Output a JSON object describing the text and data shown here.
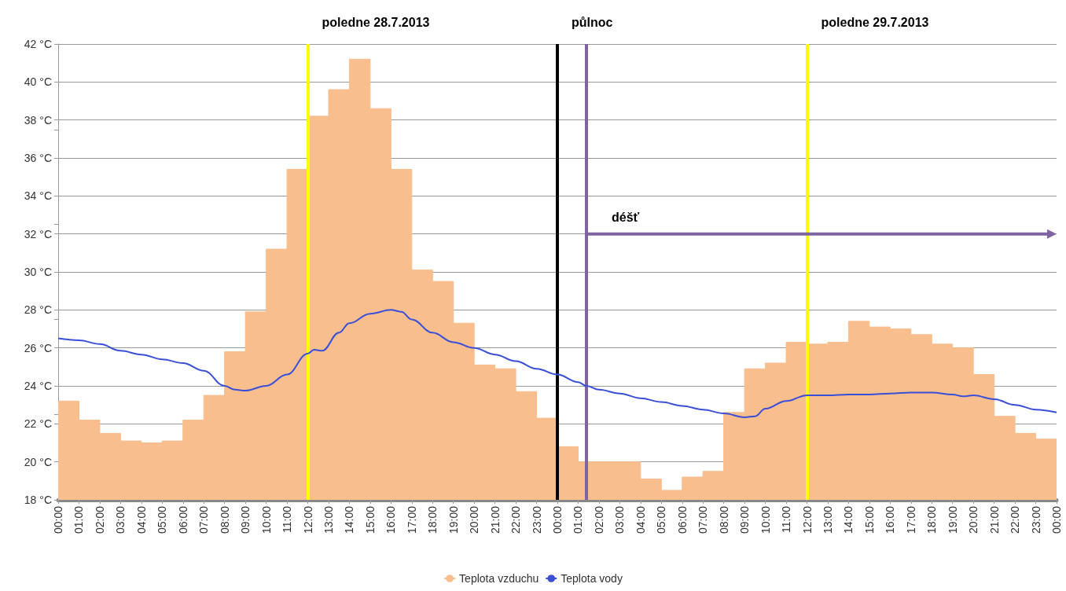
{
  "chart_data": {
    "type": "line",
    "series": [
      {
        "name": "Teplota vzduchu",
        "type": "area",
        "color": "#f9be8e",
        "x": [
          "2013-07-28T00:00",
          "2013-07-28T01:00",
          "2013-07-28T01:00",
          "2013-07-28T02:00",
          "2013-07-28T02:00",
          "2013-07-28T03:00",
          "2013-07-28T03:00",
          "2013-07-28T04:00",
          "2013-07-28T04:00",
          "2013-07-28T05:00",
          "2013-07-28T05:00",
          "2013-07-28T06:00",
          "2013-07-28T06:00",
          "2013-07-28T07:00",
          "2013-07-28T07:00",
          "2013-07-28T08:00",
          "2013-07-28T08:00",
          "2013-07-28T09:00",
          "2013-07-28T09:00",
          "2013-07-28T10:00",
          "2013-07-28T10:00",
          "2013-07-28T11:00",
          "2013-07-28T11:00",
          "2013-07-28T12:00",
          "2013-07-28T12:00",
          "2013-07-28T13:00",
          "2013-07-28T13:00",
          "2013-07-28T14:00",
          "2013-07-28T14:00",
          "2013-07-28T15:00",
          "2013-07-28T15:00",
          "2013-07-28T16:00",
          "2013-07-28T16:00",
          "2013-07-28T17:00",
          "2013-07-28T17:00",
          "2013-07-28T18:00",
          "2013-07-28T18:00",
          "2013-07-28T19:00",
          "2013-07-28T19:00",
          "2013-07-28T20:00",
          "2013-07-28T20:00",
          "2013-07-28T21:00",
          "2013-07-28T21:00",
          "2013-07-28T22:00",
          "2013-07-28T22:00",
          "2013-07-28T23:00",
          "2013-07-28T23:00",
          "2013-07-29T00:00",
          "2013-07-29T00:00",
          "2013-07-29T01:00",
          "2013-07-29T01:00",
          "2013-07-29T04:00",
          "2013-07-29T04:00",
          "2013-07-29T05:00",
          "2013-07-29T05:00",
          "2013-07-29T06:00",
          "2013-07-29T06:00",
          "2013-07-29T07:00",
          "2013-07-29T07:00",
          "2013-07-29T08:00",
          "2013-07-29T08:00",
          "2013-07-29T09:00",
          "2013-07-29T09:00",
          "2013-07-29T10:00",
          "2013-07-29T10:00",
          "2013-07-29T11:00",
          "2013-07-29T11:00",
          "2013-07-29T12:00",
          "2013-07-29T12:00",
          "2013-07-29T13:00",
          "2013-07-29T13:00",
          "2013-07-29T14:00",
          "2013-07-29T14:00",
          "2013-07-29T15:00",
          "2013-07-29T15:00",
          "2013-07-29T16:00",
          "2013-07-29T16:00",
          "2013-07-29T17:00",
          "2013-07-29T17:00",
          "2013-07-29T18:00",
          "2013-07-29T18:00",
          "2013-07-29T19:00",
          "2013-07-29T19:00",
          "2013-07-29T20:00",
          "2013-07-29T20:00",
          "2013-07-29T21:00",
          "2013-07-29T21:00",
          "2013-07-29T22:00",
          "2013-07-29T22:00",
          "2013-07-29T23:00",
          "2013-07-29T23:00",
          "2013-07-30T00:00"
        ],
        "values": [
          23.2,
          23.2,
          22.2,
          22.2,
          21.5,
          21.5,
          21.1,
          21.1,
          21.0,
          21.0,
          21.1,
          21.1,
          22.2,
          22.2,
          23.5,
          23.5,
          25.8,
          25.8,
          27.9,
          27.9,
          31.2,
          31.2,
          35.4,
          35.4,
          38.2,
          38.2,
          39.6,
          39.6,
          41.2,
          41.2,
          38.6,
          38.6,
          35.4,
          35.4,
          30.1,
          30.1,
          29.5,
          29.5,
          27.3,
          27.3,
          25.1,
          25.1,
          24.9,
          24.9,
          23.7,
          23.7,
          22.3,
          22.3,
          20.8,
          20.8,
          20.0,
          20.0,
          19.1,
          19.1,
          18.5,
          18.5,
          19.2,
          19.2,
          19.5,
          19.5,
          22.6,
          22.6,
          24.9,
          24.9,
          25.2,
          25.2,
          26.3,
          26.3,
          26.2,
          26.2,
          26.3,
          26.3,
          27.4,
          27.4,
          27.1,
          27.1,
          27.0,
          27.0,
          26.7,
          26.7,
          26.2,
          26.2,
          26.0,
          26.0,
          24.6,
          24.6,
          22.4,
          22.4,
          21.5,
          21.5,
          21.2,
          21.2
        ]
      },
      {
        "name": "Teplota vody",
        "color": "#3a4fd8",
        "x": [
          "2013-07-28T00:00",
          "2013-07-28T01:00",
          "2013-07-28T02:00",
          "2013-07-28T03:00",
          "2013-07-28T04:00",
          "2013-07-28T05:00",
          "2013-07-28T06:00",
          "2013-07-28T07:00",
          "2013-07-28T08:00",
          "2013-07-28T08:30",
          "2013-07-28T09:00",
          "2013-07-28T10:00",
          "2013-07-28T11:00",
          "2013-07-28T12:00",
          "2013-07-28T12:18",
          "2013-07-28T12:42",
          "2013-07-28T13:30",
          "2013-07-28T14:00",
          "2013-07-28T15:00",
          "2013-07-28T16:00",
          "2013-07-28T16:30",
          "2013-07-28T17:00",
          "2013-07-28T18:00",
          "2013-07-28T19:00",
          "2013-07-28T20:00",
          "2013-07-28T21:00",
          "2013-07-28T22:00",
          "2013-07-28T23:00",
          "2013-07-29T00:00",
          "2013-07-29T01:00",
          "2013-07-29T01:24",
          "2013-07-29T02:00",
          "2013-07-29T03:00",
          "2013-07-29T04:00",
          "2013-07-29T05:00",
          "2013-07-29T06:00",
          "2013-07-29T07:00",
          "2013-07-29T08:00",
          "2013-07-29T09:00",
          "2013-07-29T09:30",
          "2013-07-29T10:00",
          "2013-07-29T11:00",
          "2013-07-29T12:00",
          "2013-07-29T13:00",
          "2013-07-29T14:00",
          "2013-07-29T15:00",
          "2013-07-29T16:00",
          "2013-07-29T17:00",
          "2013-07-29T18:00",
          "2013-07-29T19:00",
          "2013-07-29T19:30",
          "2013-07-29T20:00",
          "2013-07-29T21:00",
          "2013-07-29T22:00",
          "2013-07-29T23:00",
          "2013-07-30T00:00"
        ],
        "values": [
          26.5,
          26.4,
          26.2,
          25.85,
          25.65,
          25.4,
          25.2,
          24.8,
          24.0,
          23.8,
          23.75,
          24.0,
          24.6,
          25.7,
          25.9,
          25.85,
          26.8,
          27.3,
          27.8,
          28.0,
          27.9,
          27.5,
          26.8,
          26.3,
          26.0,
          25.65,
          25.3,
          24.9,
          24.6,
          24.2,
          24.0,
          23.8,
          23.6,
          23.35,
          23.15,
          22.95,
          22.75,
          22.55,
          22.35,
          22.4,
          22.8,
          23.2,
          23.5,
          23.5,
          23.55,
          23.55,
          23.6,
          23.65,
          23.65,
          23.55,
          23.45,
          23.5,
          23.3,
          23.0,
          22.75,
          22.6
        ]
      }
    ],
    "xlim": [
      "2013-07-28T00:00",
      "2013-07-30T00:00"
    ],
    "xticks": [
      {
        "value": "2013-07-28T00:00",
        "label": "00:00"
      },
      {
        "value": "2013-07-28T01:00",
        "label": "01:00"
      },
      {
        "value": "2013-07-28T02:00",
        "label": "02:00"
      },
      {
        "value": "2013-07-28T03:00",
        "label": "03:00"
      },
      {
        "value": "2013-07-28T04:00",
        "label": "04:00"
      },
      {
        "value": "2013-07-28T05:00",
        "label": "05:00"
      },
      {
        "value": "2013-07-28T06:00",
        "label": "06:00"
      },
      {
        "value": "2013-07-28T07:00",
        "label": "07:00"
      },
      {
        "value": "2013-07-28T08:00",
        "label": "08:00"
      },
      {
        "value": "2013-07-28T09:00",
        "label": "09:00"
      },
      {
        "value": "2013-07-28T10:00",
        "label": "10:00"
      },
      {
        "value": "2013-07-28T11:00",
        "label": "11:00"
      },
      {
        "value": "2013-07-28T12:00",
        "label": "12:00"
      },
      {
        "value": "2013-07-28T13:00",
        "label": "13:00"
      },
      {
        "value": "2013-07-28T14:00",
        "label": "14:00"
      },
      {
        "value": "2013-07-28T15:00",
        "label": "15:00"
      },
      {
        "value": "2013-07-28T16:00",
        "label": "16:00"
      },
      {
        "value": "2013-07-28T17:00",
        "label": "17:00"
      },
      {
        "value": "2013-07-28T18:00",
        "label": "18:00"
      },
      {
        "value": "2013-07-28T19:00",
        "label": "19:00"
      },
      {
        "value": "2013-07-28T20:00",
        "label": "20:00"
      },
      {
        "value": "2013-07-28T21:00",
        "label": "21:00"
      },
      {
        "value": "2013-07-28T22:00",
        "label": "22:00"
      },
      {
        "value": "2013-07-28T23:00",
        "label": "23:00"
      },
      {
        "value": "2013-07-29T00:00",
        "label": "00:00"
      },
      {
        "value": "2013-07-29T01:00",
        "label": "01:00"
      },
      {
        "value": "2013-07-29T02:00",
        "label": "02:00"
      },
      {
        "value": "2013-07-29T03:00",
        "label": "03:00"
      },
      {
        "value": "2013-07-29T04:00",
        "label": "04:00"
      },
      {
        "value": "2013-07-29T05:00",
        "label": "05:00"
      },
      {
        "value": "2013-07-29T06:00",
        "label": "06:00"
      },
      {
        "value": "2013-07-29T07:00",
        "label": "07:00"
      },
      {
        "value": "2013-07-29T08:00",
        "label": "08:00"
      },
      {
        "value": "2013-07-29T09:00",
        "label": "09:00"
      },
      {
        "value": "2013-07-29T10:00",
        "label": "10:00"
      },
      {
        "value": "2013-07-29T11:00",
        "label": "11:00"
      },
      {
        "value": "2013-07-29T12:00",
        "label": "12:00"
      },
      {
        "value": "2013-07-29T13:00",
        "label": "13:00"
      },
      {
        "value": "2013-07-29T14:00",
        "label": "14:00"
      },
      {
        "value": "2013-07-29T15:00",
        "label": "15:00"
      },
      {
        "value": "2013-07-29T16:00",
        "label": "16:00"
      },
      {
        "value": "2013-07-29T17:00",
        "label": "17:00"
      },
      {
        "value": "2013-07-29T18:00",
        "label": "18:00"
      },
      {
        "value": "2013-07-29T19:00",
        "label": "19:00"
      },
      {
        "value": "2013-07-29T20:00",
        "label": "20:00"
      },
      {
        "value": "2013-07-29T21:00",
        "label": "21:00"
      },
      {
        "value": "2013-07-29T22:00",
        "label": "22:00"
      },
      {
        "value": "2013-07-29T23:00",
        "label": "23:00"
      },
      {
        "value": "2013-07-30T00:00",
        "label": "00:00"
      }
    ],
    "ylim": [
      18,
      42
    ],
    "yticks": [
      {
        "value": 18,
        "label": "18 °C"
      },
      {
        "value": 20,
        "label": "20 °C"
      },
      {
        "value": 22,
        "label": "22 °C"
      },
      {
        "value": 24,
        "label": "24 °C"
      },
      {
        "value": 26,
        "label": "26 °C"
      },
      {
        "value": 28,
        "label": "28 °C"
      },
      {
        "value": 30,
        "label": "30 °C"
      },
      {
        "value": 32,
        "label": "32 °C"
      },
      {
        "value": 34,
        "label": "34 °C"
      },
      {
        "value": 36,
        "label": "36 °C"
      },
      {
        "value": 38,
        "label": "38 °C"
      },
      {
        "value": 40,
        "label": "40 °C"
      },
      {
        "value": 42,
        "label": "42 °C"
      }
    ],
    "ref_lines": [
      {
        "axis": "x",
        "value": "2013-07-28T12:00",
        "label": "poledne 28.7.2013",
        "color": "#ffff00"
      },
      {
        "axis": "x",
        "value": "2013-07-29T00:00",
        "label": "půlnoc",
        "color": "#000000"
      },
      {
        "axis": "x",
        "value": "2013-07-29T12:00",
        "label": "poledne 29.7.2013",
        "color": "#ffff00"
      },
      {
        "axis": "x",
        "value": "2013-07-29T01:24",
        "color": "#8064a2"
      }
    ],
    "annotations": [
      {
        "text": "déšť",
        "x": "2013-07-29T01:24",
        "y": 32
      }
    ],
    "grid": "y",
    "legend": "bottom"
  }
}
